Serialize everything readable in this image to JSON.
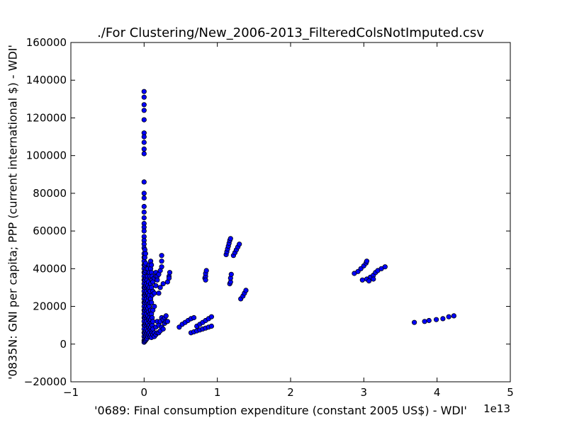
{
  "chart_data": {
    "type": "scatter",
    "title": "./For Clustering/New_2006-2013_FilteredColsNotImputed.csv",
    "xlabel": "'0689: Final consumption expenditure  (constant 2005 US$) - WDI'",
    "ylabel": "'0835N: GNI per capita; PPP  (current international $) - WDI'",
    "x_offset_text": "1e13",
    "xlim": [
      -1,
      5
    ],
    "ylim": [
      -20000,
      160000
    ],
    "x_ticks": [
      -1,
      0,
      1,
      2,
      3,
      4,
      5
    ],
    "x_tick_labels": [
      "−1",
      "0",
      "1",
      "2",
      "3",
      "4",
      "5"
    ],
    "y_ticks": [
      -20000,
      0,
      20000,
      40000,
      60000,
      80000,
      100000,
      120000,
      140000,
      160000
    ],
    "y_tick_labels": [
      "−20000",
      "0",
      "20000",
      "40000",
      "60000",
      "80000",
      "100000",
      "120000",
      "140000",
      "160000"
    ],
    "grid": false,
    "marker_color": "#0000ff",
    "marker_edge_color": "#000000",
    "x_units_note": "x values in units of 1e13",
    "points": [
      [
        0.0,
        134000
      ],
      [
        0.0,
        131000
      ],
      [
        0.0,
        127000
      ],
      [
        0.0,
        124000
      ],
      [
        0.0,
        119000
      ],
      [
        0.0,
        112000
      ],
      [
        0.0,
        110000
      ],
      [
        0.0,
        107000
      ],
      [
        0.0,
        103500
      ],
      [
        0.0,
        101000
      ],
      [
        0.0,
        86000
      ],
      [
        0.0,
        80000
      ],
      [
        0.0,
        77500
      ],
      [
        0.0,
        73000
      ],
      [
        0.0,
        70000
      ],
      [
        0.0,
        67000
      ],
      [
        0.0,
        64000
      ],
      [
        0.0,
        62000
      ],
      [
        0.0,
        60000
      ],
      [
        0.0,
        57000
      ],
      [
        0.0,
        55000
      ],
      [
        0.0,
        53000
      ],
      [
        0.0,
        51000
      ],
      [
        0.0,
        48000
      ],
      [
        0.0,
        46000
      ],
      [
        0.0,
        44000
      ],
      [
        0.0,
        42000
      ],
      [
        0.0,
        40000
      ],
      [
        0.0,
        38000
      ],
      [
        0.0,
        36000
      ],
      [
        0.0,
        34000
      ],
      [
        0.0,
        32000
      ],
      [
        0.0,
        30000
      ],
      [
        0.0,
        28000
      ],
      [
        0.0,
        26000
      ],
      [
        0.0,
        24000
      ],
      [
        0.0,
        22000
      ],
      [
        0.0,
        20000
      ],
      [
        0.0,
        18000
      ],
      [
        0.0,
        16000
      ],
      [
        0.0,
        14000
      ],
      [
        0.0,
        12000
      ],
      [
        0.0,
        10000
      ],
      [
        0.0,
        8000
      ],
      [
        0.0,
        6000
      ],
      [
        0.0,
        4000
      ],
      [
        0.0,
        2000
      ],
      [
        0.0,
        1000
      ],
      [
        0.01,
        50000
      ],
      [
        0.01,
        46000
      ],
      [
        0.01,
        42000
      ],
      [
        0.01,
        38000
      ],
      [
        0.01,
        34000
      ],
      [
        0.01,
        30000
      ],
      [
        0.01,
        26000
      ],
      [
        0.01,
        22000
      ],
      [
        0.01,
        18000
      ],
      [
        0.01,
        14000
      ],
      [
        0.01,
        10000
      ],
      [
        0.01,
        6000
      ],
      [
        0.01,
        3000
      ],
      [
        0.01,
        1500
      ],
      [
        0.02,
        48000
      ],
      [
        0.02,
        43000
      ],
      [
        0.02,
        39000
      ],
      [
        0.02,
        35000
      ],
      [
        0.02,
        31000
      ],
      [
        0.02,
        27000
      ],
      [
        0.02,
        23000
      ],
      [
        0.02,
        19000
      ],
      [
        0.02,
        15000
      ],
      [
        0.02,
        11000
      ],
      [
        0.02,
        7000
      ],
      [
        0.02,
        4000
      ],
      [
        0.02,
        2000
      ],
      [
        0.03,
        40000
      ],
      [
        0.03,
        36000
      ],
      [
        0.03,
        32000
      ],
      [
        0.03,
        28000
      ],
      [
        0.03,
        24000
      ],
      [
        0.03,
        20000
      ],
      [
        0.03,
        16000
      ],
      [
        0.03,
        12000
      ],
      [
        0.03,
        8000
      ],
      [
        0.03,
        5000
      ],
      [
        0.03,
        2500
      ],
      [
        0.04,
        34000
      ],
      [
        0.04,
        30000
      ],
      [
        0.04,
        26000
      ],
      [
        0.04,
        22000
      ],
      [
        0.04,
        18000
      ],
      [
        0.04,
        14000
      ],
      [
        0.04,
        10000
      ],
      [
        0.04,
        6000
      ],
      [
        0.04,
        3000
      ],
      [
        0.05,
        40000
      ],
      [
        0.05,
        36000
      ],
      [
        0.05,
        31000
      ],
      [
        0.05,
        27000
      ],
      [
        0.05,
        23000
      ],
      [
        0.05,
        19000
      ],
      [
        0.05,
        15000
      ],
      [
        0.05,
        11000
      ],
      [
        0.05,
        7000
      ],
      [
        0.05,
        4000
      ],
      [
        0.06,
        33000
      ],
      [
        0.06,
        29000
      ],
      [
        0.06,
        25000
      ],
      [
        0.06,
        21000
      ],
      [
        0.06,
        17000
      ],
      [
        0.06,
        13000
      ],
      [
        0.06,
        9000
      ],
      [
        0.06,
        5000
      ],
      [
        0.07,
        42000
      ],
      [
        0.07,
        38000
      ],
      [
        0.07,
        30000
      ],
      [
        0.07,
        26000
      ],
      [
        0.07,
        20000
      ],
      [
        0.07,
        14000
      ],
      [
        0.07,
        10000
      ],
      [
        0.07,
        6000
      ],
      [
        0.08,
        36000
      ],
      [
        0.08,
        28000
      ],
      [
        0.08,
        22000
      ],
      [
        0.08,
        16000
      ],
      [
        0.08,
        12000
      ],
      [
        0.08,
        8000
      ],
      [
        0.08,
        4000
      ],
      [
        0.09,
        44000
      ],
      [
        0.09,
        40000
      ],
      [
        0.09,
        32000
      ],
      [
        0.09,
        24000
      ],
      [
        0.09,
        18000
      ],
      [
        0.09,
        13000
      ],
      [
        0.09,
        9000
      ],
      [
        0.09,
        5000
      ],
      [
        0.1,
        42000
      ],
      [
        0.1,
        38000
      ],
      [
        0.1,
        30000
      ],
      [
        0.1,
        22000
      ],
      [
        0.1,
        16000
      ],
      [
        0.1,
        11000
      ],
      [
        0.1,
        7000
      ],
      [
        0.1,
        3500
      ],
      [
        0.11,
        36000
      ],
      [
        0.11,
        34000
      ],
      [
        0.11,
        26000
      ],
      [
        0.11,
        14000
      ],
      [
        0.11,
        10000
      ],
      [
        0.11,
        6000
      ],
      [
        0.12,
        33000
      ],
      [
        0.12,
        28000
      ],
      [
        0.12,
        18000
      ],
      [
        0.12,
        12000
      ],
      [
        0.12,
        8000
      ],
      [
        0.12,
        5000
      ],
      [
        0.14,
        35000
      ],
      [
        0.14,
        27000
      ],
      [
        0.14,
        20000
      ],
      [
        0.14,
        6000
      ],
      [
        0.14,
        4000
      ],
      [
        0.16,
        38000
      ],
      [
        0.16,
        36000
      ],
      [
        0.16,
        31000
      ],
      [
        0.16,
        9000
      ],
      [
        0.16,
        5000
      ],
      [
        0.18,
        36000
      ],
      [
        0.18,
        34000
      ],
      [
        0.18,
        12000
      ],
      [
        0.18,
        6000
      ],
      [
        0.2,
        37000
      ],
      [
        0.2,
        27000
      ],
      [
        0.2,
        10000
      ],
      [
        0.2,
        6000
      ],
      [
        0.22,
        39000
      ],
      [
        0.22,
        30000
      ],
      [
        0.22,
        12000
      ],
      [
        0.22,
        7000
      ],
      [
        0.24,
        47000
      ],
      [
        0.24,
        44000
      ],
      [
        0.24,
        41000
      ],
      [
        0.24,
        14000
      ],
      [
        0.24,
        9000
      ],
      [
        0.26,
        32000
      ],
      [
        0.26,
        13000
      ],
      [
        0.26,
        8000
      ],
      [
        0.28,
        14000
      ],
      [
        0.28,
        11000
      ],
      [
        0.3,
        15000
      ],
      [
        0.3,
        12000
      ],
      [
        0.32,
        33000
      ],
      [
        0.32,
        12000
      ],
      [
        0.34,
        36000
      ],
      [
        0.34,
        35000
      ],
      [
        0.35,
        38000
      ],
      [
        0.48,
        9000
      ],
      [
        0.52,
        10500
      ],
      [
        0.56,
        11500
      ],
      [
        0.6,
        12500
      ],
      [
        0.64,
        13500
      ],
      [
        0.68,
        14000
      ],
      [
        0.64,
        6000
      ],
      [
        0.68,
        6500
      ],
      [
        0.72,
        7000
      ],
      [
        0.76,
        7500
      ],
      [
        0.8,
        8000
      ],
      [
        0.84,
        8500
      ],
      [
        0.88,
        9000
      ],
      [
        0.92,
        9500
      ],
      [
        0.72,
        9500
      ],
      [
        0.76,
        10500
      ],
      [
        0.8,
        11500
      ],
      [
        0.84,
        12500
      ],
      [
        0.88,
        13500
      ],
      [
        0.92,
        14500
      ],
      [
        0.83,
        35000
      ],
      [
        0.84,
        36000
      ],
      [
        0.84,
        37500
      ],
      [
        0.85,
        39000
      ],
      [
        0.84,
        34000
      ],
      [
        1.12,
        47500
      ],
      [
        1.13,
        49000
      ],
      [
        1.14,
        50500
      ],
      [
        1.15,
        52000
      ],
      [
        1.16,
        53500
      ],
      [
        1.17,
        55000
      ],
      [
        1.18,
        56000
      ],
      [
        1.17,
        32000
      ],
      [
        1.18,
        33000
      ],
      [
        1.18,
        35000
      ],
      [
        1.19,
        37000
      ],
      [
        1.22,
        47000
      ],
      [
        1.24,
        48500
      ],
      [
        1.26,
        50000
      ],
      [
        1.28,
        51500
      ],
      [
        1.3,
        53000
      ],
      [
        1.32,
        24000
      ],
      [
        1.35,
        25500
      ],
      [
        1.37,
        27000
      ],
      [
        1.39,
        28500
      ],
      [
        2.87,
        37500
      ],
      [
        2.92,
        38500
      ],
      [
        2.96,
        40000
      ],
      [
        3.0,
        41500
      ],
      [
        3.03,
        43000
      ],
      [
        3.04,
        44000
      ],
      [
        2.98,
        34000
      ],
      [
        3.04,
        34500
      ],
      [
        3.09,
        35500
      ],
      [
        3.13,
        36500
      ],
      [
        3.16,
        38000
      ],
      [
        3.19,
        39000
      ],
      [
        3.24,
        40000
      ],
      [
        3.29,
        41000
      ],
      [
        3.07,
        33500
      ],
      [
        3.13,
        34500
      ],
      [
        3.69,
        11500
      ],
      [
        3.83,
        12000
      ],
      [
        3.89,
        12500
      ],
      [
        3.99,
        13000
      ],
      [
        4.08,
        13500
      ],
      [
        4.16,
        14500
      ],
      [
        4.23,
        15000
      ]
    ]
  }
}
